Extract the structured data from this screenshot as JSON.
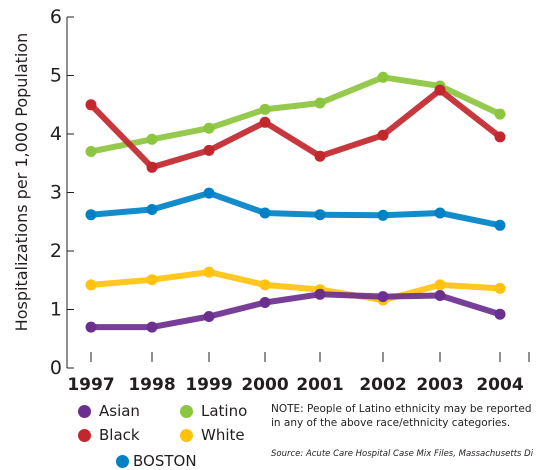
{
  "chart_data": {
    "type": "line",
    "title": "",
    "xlabel": "",
    "ylabel": "Hospitalizations per 1,000 Population",
    "ylim": [
      0,
      6
    ],
    "yticks": [
      "0",
      "1",
      "2",
      "3",
      "4",
      "5",
      "6"
    ],
    "x": [
      "1997",
      "1998",
      "1999",
      "2000",
      "2001",
      "2002",
      "2003",
      "2004"
    ],
    "series": [
      {
        "name": "Asian",
        "color": "#6b2f8f",
        "values": [
          0.7,
          0.7,
          0.88,
          1.12,
          1.26,
          1.22,
          1.24,
          0.92
        ]
      },
      {
        "name": "Black",
        "color": "#c1272d",
        "values": [
          4.5,
          3.43,
          3.72,
          4.2,
          3.62,
          3.98,
          4.75,
          3.95
        ]
      },
      {
        "name": "Latino",
        "color": "#8cc63f",
        "values": [
          3.7,
          3.91,
          4.1,
          4.42,
          4.53,
          4.97,
          4.82,
          4.34
        ]
      },
      {
        "name": "White",
        "color": "#ffc20e",
        "values": [
          1.42,
          1.51,
          1.64,
          1.42,
          1.34,
          1.16,
          1.42,
          1.36
        ]
      }
    ],
    "reference": {
      "name": "BOSTON",
      "color": "#0081c6",
      "values": [
        2.62,
        2.71,
        2.99,
        2.65,
        2.62,
        2.61,
        2.65,
        2.44
      ]
    },
    "grid": false,
    "legend_position": "bottom"
  },
  "legend": {
    "asian": "Asian",
    "latino": "Latino",
    "black": "Black",
    "white": "White",
    "boston": "BOSTON"
  },
  "note": "NOTE: People of Latino ethnicity may be reported in any of the above race/ethnicity categories.",
  "source": "Source: Acute Care Hospital Case Mix Files, Massachusetts Division of Health Care Finance and Policy"
}
